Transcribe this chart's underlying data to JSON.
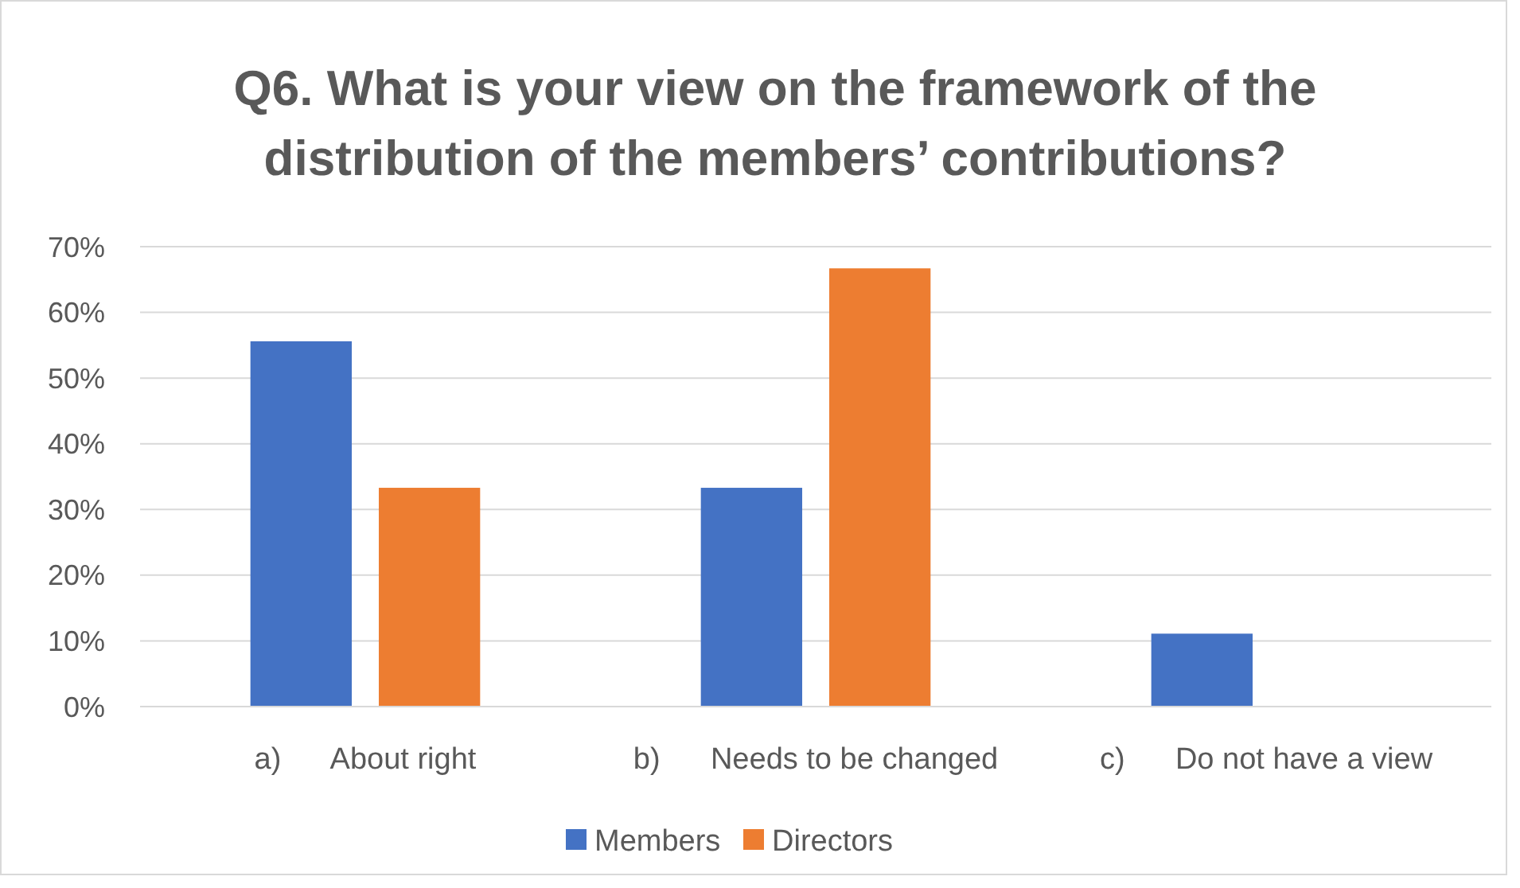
{
  "chart_data": {
    "type": "bar",
    "title": "Q6. What is your view on the framework of the distribution of the members’ contributions?",
    "categories": [
      "a)      About right",
      "b)      Needs to be changed",
      "c)      Do not have a view"
    ],
    "series": [
      {
        "name": "Members",
        "color": "#4472c4",
        "values": [
          55.6,
          33.3,
          11.1
        ]
      },
      {
        "name": "Directors",
        "color": "#ed7d31",
        "values": [
          33.3,
          66.7,
          0
        ]
      }
    ],
    "ylim": [
      0,
      70
    ],
    "yticks": [
      {
        "value": 0,
        "label": "0%"
      },
      {
        "value": 10,
        "label": "10%"
      },
      {
        "value": 20,
        "label": "20%"
      },
      {
        "value": 30,
        "label": "30%"
      },
      {
        "value": 40,
        "label": "40%"
      },
      {
        "value": 50,
        "label": "50%"
      },
      {
        "value": 60,
        "label": "60%"
      },
      {
        "value": 70,
        "label": "70%"
      }
    ],
    "grid": "y",
    "legend": "bottom"
  }
}
